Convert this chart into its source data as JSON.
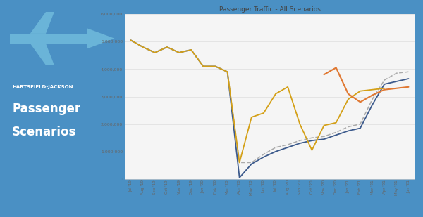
{
  "title": "Passenger Traffic - All Scenarios",
  "left_panel_bg": "#4a90c4",
  "header_text": "HARTSFIELD-JACKSON",
  "title_text1": "Passenger",
  "title_text2": "Scenarios",
  "x_labels": [
    "Jul '19",
    "Aug '19",
    "Sep '19",
    "Oct '19",
    "Nov '19",
    "Dec '19",
    "Jan '20",
    "Feb '20",
    "Mar '20",
    "Apr '20",
    "May '20",
    "Jun '20",
    "Jul '20",
    "Aug '20",
    "Sep '20",
    "Oct '20",
    "Nov '20",
    "Dec '20",
    "Jan '21",
    "Feb '21",
    "Mar '21",
    "Apr '21",
    "May '21",
    "Jun '21"
  ],
  "baseline": [
    null,
    null,
    null,
    null,
    null,
    null,
    null,
    null,
    null,
    null,
    null,
    null,
    null,
    null,
    null,
    null,
    3800000,
    4050000,
    3100000,
    2800000,
    3050000,
    3250000,
    3300000,
    3350000
  ],
  "slow_growth": [
    5050000,
    4800000,
    4600000,
    4800000,
    4600000,
    4700000,
    4100000,
    4100000,
    3900000,
    600000,
    600000,
    900000,
    1150000,
    1250000,
    1400000,
    1500000,
    1550000,
    1700000,
    1900000,
    2000000,
    2900000,
    3600000,
    3850000,
    3900000
  ],
  "w_shaped": [
    5050000,
    4800000,
    4600000,
    4800000,
    4600000,
    4700000,
    4100000,
    4100000,
    3900000,
    600000,
    2250000,
    2400000,
    3100000,
    3350000,
    2000000,
    1050000,
    1950000,
    2050000,
    2900000,
    3200000,
    3250000,
    3300000,
    null,
    null
  ],
  "worst_case": [
    5050000,
    4800000,
    4600000,
    4800000,
    4600000,
    4700000,
    4100000,
    4100000,
    3900000,
    50000,
    550000,
    800000,
    1000000,
    1150000,
    1300000,
    1400000,
    1450000,
    1600000,
    1750000,
    1850000,
    2700000,
    3450000,
    3550000,
    3650000
  ],
  "colors": {
    "baseline": "#e07832",
    "slow_growth": "#aaaaaa",
    "w_shaped": "#d4a017",
    "worst_case": "#3c5a8c"
  },
  "ylim": [
    0,
    6000000
  ],
  "yticks": [
    0,
    1000000,
    2000000,
    3000000,
    4000000,
    5000000,
    6000000
  ]
}
